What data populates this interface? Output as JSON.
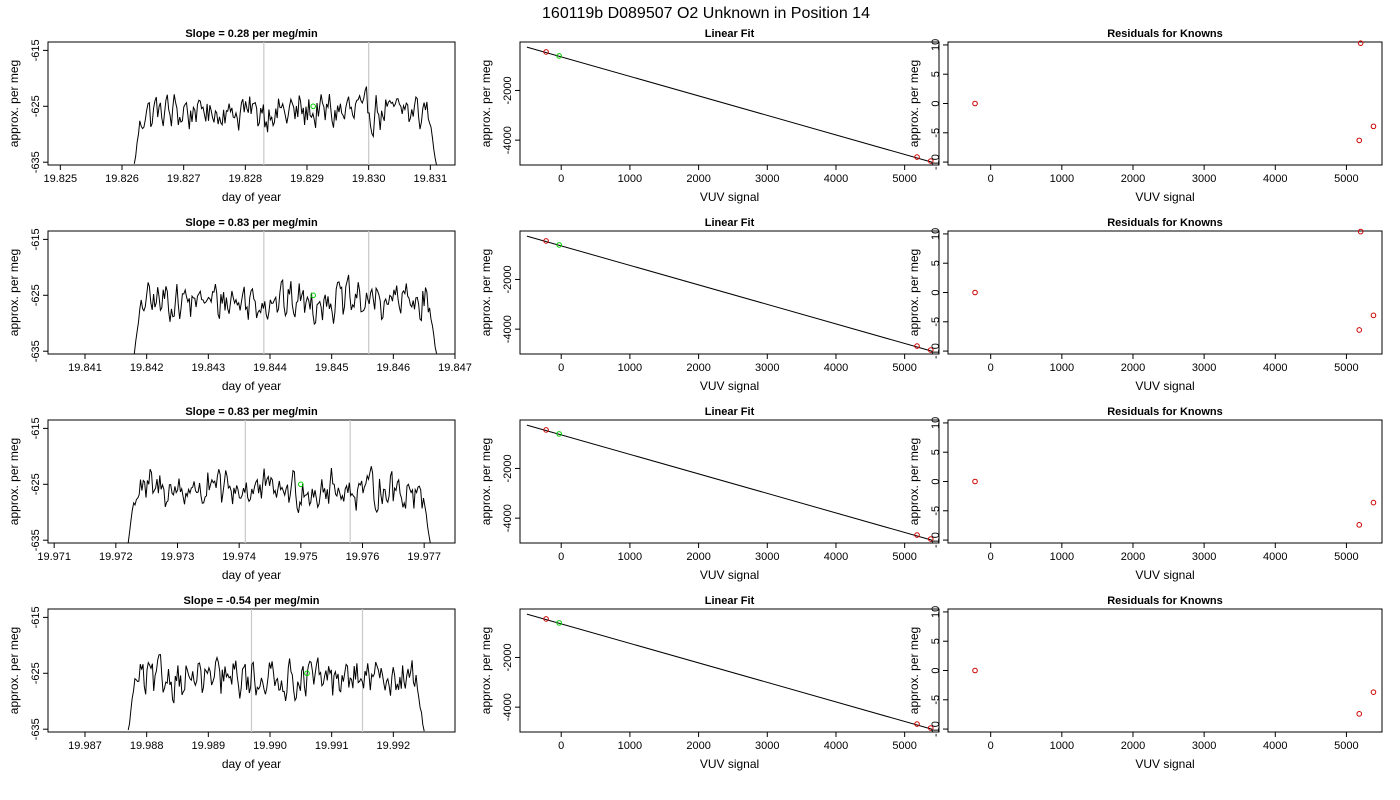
{
  "main_title": "160119b     D089507   O2 Unknown in Position  14",
  "colors": {
    "trace": "#000000",
    "vline": "#c8c8c8",
    "unknown": "#00d000",
    "known": "#cc0000"
  },
  "chart_data": [
    {
      "panel": "time-series",
      "row": 0,
      "type": "line",
      "title": "Slope =  0.28  per meg/min",
      "xlabel": "day of year",
      "ylabel": "approx. per meg",
      "xlim": [
        19.8248,
        19.8314
      ],
      "ylim": [
        -635.5,
        -613.5
      ],
      "xticks": [
        "19.825",
        "19.826",
        "19.827",
        "19.828",
        "19.829",
        "19.830",
        "19.831"
      ],
      "xtick_values": [
        19.825,
        19.826,
        19.827,
        19.828,
        19.829,
        19.83,
        19.831
      ],
      "yticks": [
        "-615",
        "-625",
        "-635"
      ],
      "ytick_values": [
        -615,
        -625,
        -635
      ],
      "trace_start": 19.8262,
      "trace_end": 19.8311,
      "trace_mean": -626,
      "vlines": [
        19.8283,
        19.83
      ],
      "unknown_point": {
        "x": 19.8291,
        "y": -625
      }
    },
    {
      "panel": "linear-fit",
      "row": 0,
      "type": "scatter",
      "title": "Linear Fit",
      "xlabel": "VUV signal",
      "ylabel": "approx. per meg",
      "xlim": [
        -600,
        5500
      ],
      "ylim": [
        -5000,
        -50
      ],
      "xticks": [
        "0",
        "1000",
        "2000",
        "3000",
        "4000",
        "5000"
      ],
      "xtick_values": [
        0,
        1000,
        2000,
        3000,
        4000,
        5000
      ],
      "yticks": [
        "-2000",
        "-4000"
      ],
      "ytick_values": [
        -2000,
        -4000
      ],
      "fit_line": [
        [
          -500,
          -255
        ],
        [
          5400,
          -4890
        ]
      ],
      "knowns": [
        [
          -220,
          -450
        ],
        [
          5180,
          -4680
        ],
        [
          5380,
          -4840
        ]
      ],
      "unknown": [
        [
          -30,
          -610
        ]
      ]
    },
    {
      "panel": "residuals",
      "row": 0,
      "type": "scatter",
      "title": "Residuals for Knowns",
      "xlabel": "VUV signal",
      "ylabel": "approx. per meg",
      "xlim": [
        -600,
        5500
      ],
      "ylim": [
        -10.5,
        10.5
      ],
      "xticks": [
        "0",
        "1000",
        "2000",
        "3000",
        "4000",
        "5000"
      ],
      "xtick_values": [
        0,
        1000,
        2000,
        3000,
        4000,
        5000
      ],
      "yticks": [
        "10",
        "5",
        "0",
        "-5",
        "-10"
      ],
      "ytick_values": [
        10,
        5,
        0,
        -5,
        -10
      ],
      "points": [
        [
          -220,
          0.0
        ],
        [
          5200,
          10.3
        ],
        [
          5180,
          -6.3
        ],
        [
          5380,
          -3.9
        ]
      ]
    },
    {
      "panel": "time-series",
      "row": 1,
      "type": "line",
      "title": "Slope =  0.83  per meg/min",
      "xlabel": "day of year",
      "ylabel": "approx. per meg",
      "xlim": [
        19.8404,
        19.847
      ],
      "ylim": [
        -635.5,
        -613.5
      ],
      "xticks": [
        "19.841",
        "19.842",
        "19.843",
        "19.844",
        "19.845",
        "19.846",
        "19.847"
      ],
      "xtick_values": [
        19.841,
        19.842,
        19.843,
        19.844,
        19.845,
        19.846,
        19.847
      ],
      "yticks": [
        "-615",
        "-625",
        "-635"
      ],
      "ytick_values": [
        -615,
        -625,
        -635
      ],
      "trace_start": 19.8418,
      "trace_end": 19.8467,
      "trace_mean": -626,
      "vlines": [
        19.8439,
        19.8456
      ],
      "unknown_point": {
        "x": 19.8447,
        "y": -625
      }
    },
    {
      "panel": "linear-fit",
      "row": 1,
      "type": "scatter",
      "title": "Linear Fit",
      "xlabel": "VUV signal",
      "ylabel": "approx. per meg",
      "xlim": [
        -600,
        5500
      ],
      "ylim": [
        -5000,
        -50
      ],
      "xticks": [
        "0",
        "1000",
        "2000",
        "3000",
        "4000",
        "5000"
      ],
      "xtick_values": [
        0,
        1000,
        2000,
        3000,
        4000,
        5000
      ],
      "yticks": [
        "-2000",
        "-4000"
      ],
      "ytick_values": [
        -2000,
        -4000
      ],
      "fit_line": [
        [
          -500,
          -255
        ],
        [
          5400,
          -4890
        ]
      ],
      "knowns": [
        [
          -220,
          -450
        ],
        [
          5180,
          -4680
        ],
        [
          5380,
          -4840
        ]
      ],
      "unknown": [
        [
          -30,
          -610
        ]
      ]
    },
    {
      "panel": "residuals",
      "row": 1,
      "type": "scatter",
      "title": "Residuals for Knowns",
      "xlabel": "VUV signal",
      "ylabel": "approx. per meg",
      "xlim": [
        -600,
        5500
      ],
      "ylim": [
        -10.5,
        10.5
      ],
      "xticks": [
        "0",
        "1000",
        "2000",
        "3000",
        "4000",
        "5000"
      ],
      "xtick_values": [
        0,
        1000,
        2000,
        3000,
        4000,
        5000
      ],
      "yticks": [
        "10",
        "5",
        "0",
        "-5",
        "-10"
      ],
      "ytick_values": [
        10,
        5,
        0,
        -5,
        -10
      ],
      "points": [
        [
          -220,
          0.0
        ],
        [
          5200,
          10.4
        ],
        [
          5180,
          -6.4
        ],
        [
          5380,
          -3.9
        ]
      ]
    },
    {
      "panel": "time-series",
      "row": 2,
      "type": "line",
      "title": "Slope =  0.83  per meg/min",
      "xlabel": "day of year",
      "ylabel": "approx. per meg",
      "xlim": [
        19.9709,
        19.9775
      ],
      "ylim": [
        -635.5,
        -613.5
      ],
      "xticks": [
        "19.971",
        "19.972",
        "19.973",
        "19.974",
        "19.975",
        "19.976",
        "19.977"
      ],
      "xtick_values": [
        19.971,
        19.972,
        19.973,
        19.974,
        19.975,
        19.976,
        19.977
      ],
      "yticks": [
        "-615",
        "-625",
        "-635"
      ],
      "ytick_values": [
        -615,
        -625,
        -635
      ],
      "trace_start": 19.9722,
      "trace_end": 19.9771,
      "trace_mean": -626,
      "vlines": [
        19.9741,
        19.9758
      ],
      "unknown_point": {
        "x": 19.975,
        "y": -625
      }
    },
    {
      "panel": "linear-fit",
      "row": 2,
      "type": "scatter",
      "title": "Linear Fit",
      "xlabel": "VUV signal",
      "ylabel": "approx. per meg",
      "xlim": [
        -600,
        5500
      ],
      "ylim": [
        -5000,
        -50
      ],
      "xticks": [
        "0",
        "1000",
        "2000",
        "3000",
        "4000",
        "5000"
      ],
      "xtick_values": [
        0,
        1000,
        2000,
        3000,
        4000,
        5000
      ],
      "yticks": [
        "-2000",
        "-4000"
      ],
      "ytick_values": [
        -2000,
        -4000
      ],
      "fit_line": [
        [
          -500,
          -255
        ],
        [
          5400,
          -4890
        ]
      ],
      "knowns": [
        [
          -220,
          -450
        ],
        [
          5180,
          -4680
        ],
        [
          5380,
          -4840
        ]
      ],
      "unknown": [
        [
          -30,
          -610
        ]
      ]
    },
    {
      "panel": "residuals",
      "row": 2,
      "type": "scatter",
      "title": "Residuals for Knowns",
      "xlabel": "VUV signal",
      "ylabel": "approx. per meg",
      "xlim": [
        -600,
        5500
      ],
      "ylim": [
        -10.5,
        10.5
      ],
      "xticks": [
        "0",
        "1000",
        "2000",
        "3000",
        "4000",
        "5000"
      ],
      "xtick_values": [
        0,
        1000,
        2000,
        3000,
        4000,
        5000
      ],
      "yticks": [
        "10",
        "5",
        "0",
        "-5",
        "-10"
      ],
      "ytick_values": [
        10,
        5,
        0,
        -5,
        -10
      ],
      "points": [
        [
          -220,
          0.0
        ],
        [
          5180,
          -7.4
        ],
        [
          5380,
          -3.6
        ]
      ]
    },
    {
      "panel": "time-series",
      "row": 3,
      "type": "line",
      "title": "Slope =  -0.54  per meg/min",
      "xlabel": "day of year",
      "ylabel": "approx. per meg",
      "xlim": [
        19.9864,
        19.993
      ],
      "ylim": [
        -635.5,
        -613.5
      ],
      "xticks": [
        "19.987",
        "19.988",
        "19.989",
        "19.990",
        "19.991",
        "19.992"
      ],
      "xtick_values": [
        19.987,
        19.988,
        19.989,
        19.99,
        19.991,
        19.992
      ],
      "yticks": [
        "-615",
        "-625",
        "-635"
      ],
      "ytick_values": [
        -615,
        -625,
        -635
      ],
      "trace_start": 19.9877,
      "trace_end": 19.9925,
      "trace_mean": -626,
      "vlines": [
        19.9897,
        19.9915
      ],
      "unknown_point": {
        "x": 19.9906,
        "y": -625
      }
    },
    {
      "panel": "linear-fit",
      "row": 3,
      "type": "scatter",
      "title": "Linear Fit",
      "xlabel": "VUV signal",
      "ylabel": "approx. per meg",
      "xlim": [
        -600,
        5500
      ],
      "ylim": [
        -5000,
        -50
      ],
      "xticks": [
        "0",
        "1000",
        "2000",
        "3000",
        "4000",
        "5000"
      ],
      "xtick_values": [
        0,
        1000,
        2000,
        3000,
        4000,
        5000
      ],
      "yticks": [
        "-2000",
        "-4000"
      ],
      "ytick_values": [
        -2000,
        -4000
      ],
      "fit_line": [
        [
          -500,
          -255
        ],
        [
          5400,
          -4890
        ]
      ],
      "knowns": [
        [
          -220,
          -450
        ],
        [
          5180,
          -4680
        ],
        [
          5380,
          -4840
        ]
      ],
      "unknown": [
        [
          -30,
          -610
        ]
      ]
    },
    {
      "panel": "residuals",
      "row": 3,
      "type": "scatter",
      "title": "Residuals for Knowns",
      "xlabel": "VUV signal",
      "ylabel": "approx. per meg",
      "xlim": [
        -600,
        5500
      ],
      "ylim": [
        -10.5,
        10.5
      ],
      "xticks": [
        "0",
        "1000",
        "2000",
        "3000",
        "4000",
        "5000"
      ],
      "xtick_values": [
        0,
        1000,
        2000,
        3000,
        4000,
        5000
      ],
      "yticks": [
        "10",
        "5",
        "0",
        "-5",
        "-10"
      ],
      "ytick_values": [
        10,
        5,
        0,
        -5,
        -10
      ],
      "points": [
        [
          -220,
          0.0
        ],
        [
          5180,
          -7.4
        ],
        [
          5380,
          -3.7
        ]
      ]
    }
  ]
}
